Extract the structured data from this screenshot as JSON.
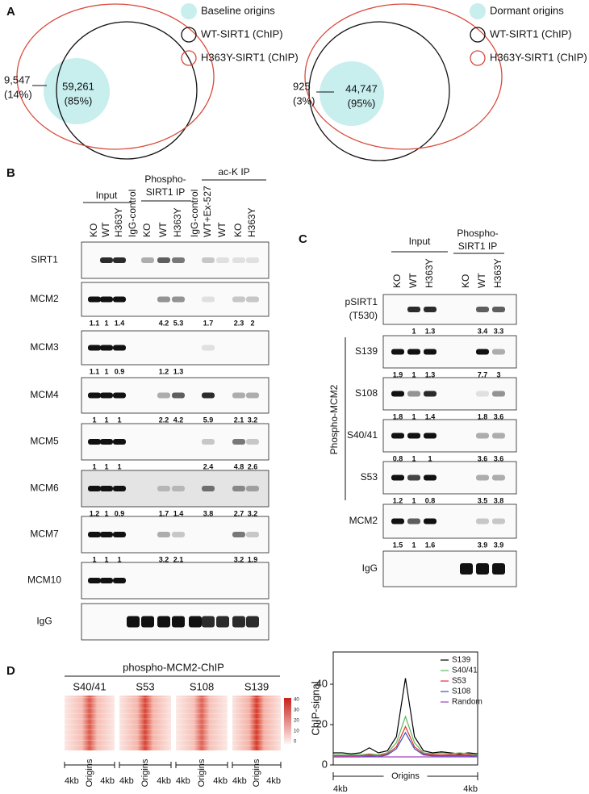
{
  "panel_a": {
    "label": "A",
    "venns": [
      {
        "legend": [
          "Baseline origins",
          "WT-SIRT1 (ChIP)",
          "H363Y-SIRT1 (ChIP)"
        ],
        "outside": [
          "9,547",
          "(14%)"
        ],
        "inside": [
          "59,261",
          "(85%)"
        ]
      },
      {
        "legend": [
          "Dormant origins",
          "WT-SIRT1 (ChIP)",
          "H363Y-SIRT1 (ChIP)"
        ],
        "outside": [
          "925",
          "(3%)"
        ],
        "inside": [
          "44,747",
          "(95%)"
        ]
      }
    ]
  },
  "panel_b": {
    "label": "B",
    "groups": [
      [
        "Input"
      ],
      [
        "Phospho-",
        "SIRT1 IP"
      ],
      [
        "ac-K IP"
      ]
    ],
    "lanes": [
      "KO",
      "WT",
      "H363Y",
      "IgG-control",
      "KO",
      "WT",
      "H363Y",
      "IgG-control",
      "WT+Ex-527",
      "WT",
      "KO",
      "H363Y"
    ],
    "rows": [
      {
        "name": "SIRT1"
      },
      {
        "name": "MCM2",
        "quant": [
          1.1,
          1,
          1.4,
          null,
          null,
          4.2,
          5.3,
          null,
          1.7,
          null,
          2.3,
          2
        ]
      },
      {
        "name": "MCM3",
        "quant": [
          1.1,
          1,
          0.9,
          null,
          null,
          1.2,
          1.3,
          null,
          null,
          null,
          null,
          null
        ]
      },
      {
        "name": "MCM4",
        "quant": [
          1,
          1,
          1,
          null,
          null,
          2.2,
          4.2,
          null,
          5.9,
          null,
          2.1,
          3.2
        ]
      },
      {
        "name": "MCM5",
        "quant": [
          1,
          1,
          1,
          null,
          null,
          null,
          null,
          null,
          2.4,
          null,
          4.8,
          2.6
        ]
      },
      {
        "name": "MCM6",
        "quant": [
          1.2,
          1,
          0.9,
          null,
          null,
          1.7,
          1.4,
          null,
          3.8,
          null,
          2.7,
          3.2
        ]
      },
      {
        "name": "MCM7",
        "quant": [
          1,
          1,
          1,
          null,
          null,
          3.2,
          2.1,
          null,
          null,
          null,
          3.2,
          1.9
        ]
      },
      {
        "name": "MCM10"
      },
      {
        "name": "IgG"
      }
    ]
  },
  "panel_c": {
    "label": "C",
    "groups": [
      [
        "Input"
      ],
      [
        "Phospho-",
        "SIRT1 IP"
      ]
    ],
    "lanes": [
      "KO",
      "WT",
      "H363Y",
      "KO",
      "WT",
      "H363Y"
    ],
    "side_label": "Phospho-MCM2",
    "rows": [
      {
        "name": [
          "pSIRT1",
          "(T530)"
        ],
        "quant": [
          null,
          1,
          1.3,
          null,
          3.4,
          3.3
        ]
      },
      {
        "name": [
          "S139"
        ],
        "quant": [
          1.9,
          1,
          1.3,
          null,
          7.7,
          3
        ]
      },
      {
        "name": [
          "S108"
        ],
        "quant": [
          1.8,
          1,
          1.4,
          null,
          1.8,
          3.6
        ]
      },
      {
        "name": [
          "S40/41"
        ],
        "quant": [
          0.8,
          1,
          1,
          null,
          3.6,
          3.6
        ]
      },
      {
        "name": [
          "S53"
        ],
        "quant": [
          1.2,
          1,
          0.8,
          null,
          3.5,
          3.8
        ]
      },
      {
        "name": [
          "MCM2"
        ],
        "quant": [
          1.5,
          1,
          1.6,
          null,
          3.9,
          3.9
        ]
      },
      {
        "name": [
          "IgG"
        ]
      }
    ]
  },
  "panel_d": {
    "label": "D",
    "heatmap_title": "phospho-MCM2-ChIP",
    "heatmaps": [
      "S40/41",
      "S53",
      "S108",
      "S139"
    ],
    "axis_labels": [
      "4kb",
      "Origins",
      "4kb"
    ],
    "colorbar_ticks": [
      40,
      30,
      20,
      10,
      0
    ]
  },
  "chart_data": {
    "type": "line",
    "y_label": "ChIP-signal",
    "x": [
      -4,
      -3.5,
      -3,
      -2.5,
      -2,
      -1.5,
      -1,
      -0.5,
      0,
      0.5,
      1,
      1.5,
      2,
      2.5,
      3,
      3.5,
      4
    ],
    "xlim": [
      -4,
      4
    ],
    "xticks": [
      {
        "value": -4,
        "label": "4kb"
      },
      {
        "value": 0,
        "label": "Origins"
      },
      {
        "value": 4,
        "label": "4kb"
      }
    ],
    "ylim": [
      0,
      56
    ],
    "yticks": [
      0,
      20,
      40
    ],
    "legend": "upper right",
    "series": [
      {
        "name": "S139",
        "color": "#000000",
        "values": [
          6,
          6,
          5.5,
          6,
          8.5,
          6,
          7,
          14,
          43,
          14,
          7,
          6,
          6.5,
          6,
          5.5,
          6,
          5.5
        ]
      },
      {
        "name": "S40/41",
        "color": "#5cb85c",
        "values": [
          5,
          5,
          5,
          5,
          5.5,
          5,
          6,
          11,
          24,
          11,
          6,
          5.5,
          6,
          5.5,
          6,
          5.5,
          5
        ]
      },
      {
        "name": "S53",
        "color": "#e0322b",
        "values": [
          4.5,
          4.5,
          4.5,
          4.5,
          5,
          4.5,
          5.5,
          9,
          19,
          9,
          5.5,
          5,
          5,
          5,
          5,
          5,
          4.5
        ]
      },
      {
        "name": "S108",
        "color": "#3b4cc0",
        "values": [
          4,
          4,
          4,
          4,
          4.5,
          4,
          5,
          8,
          16,
          8,
          5,
          4.5,
          4.5,
          4.5,
          4.5,
          4.5,
          4
        ]
      },
      {
        "name": "Random",
        "color": "#a040c0",
        "values": [
          4,
          4,
          4,
          4,
          4,
          4,
          4,
          4,
          4,
          4,
          4,
          4,
          4,
          4,
          4,
          4,
          4
        ]
      }
    ]
  }
}
